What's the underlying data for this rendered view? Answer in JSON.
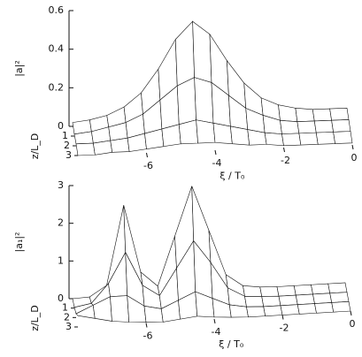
{
  "chart_data": [
    {
      "type": "surface",
      "zlabel": "|a|²",
      "ylabel": "z/L_D",
      "xlabel": "ξ / T₀",
      "x": [
        -8,
        -7.5,
        -7,
        -6.5,
        -6,
        -5.5,
        -5,
        -4.5,
        -4,
        -3.5,
        -3,
        -2.5,
        -2,
        -1.5,
        -1,
        -0.5,
        0
      ],
      "depths": [
        0,
        1,
        2,
        3
      ],
      "z": [
        [
          0.02,
          0.03,
          0.05,
          0.09,
          0.16,
          0.28,
          0.43,
          0.52,
          0.45,
          0.31,
          0.19,
          0.11,
          0.07,
          0.05,
          0.04,
          0.04,
          0.04
        ],
        [
          0.01,
          0.02,
          0.04,
          0.06,
          0.1,
          0.17,
          0.24,
          0.28,
          0.25,
          0.18,
          0.11,
          0.07,
          0.04,
          0.03,
          0.03,
          0.03,
          0.03
        ],
        [
          0.01,
          0.01,
          0.02,
          0.03,
          0.05,
          0.07,
          0.09,
          0.11,
          0.09,
          0.07,
          0.05,
          0.03,
          0.02,
          0.02,
          0.02,
          0.02,
          0.02
        ],
        [
          0,
          0,
          0.01,
          0.01,
          0.02,
          0.03,
          0.04,
          0.04,
          0.04,
          0.03,
          0.02,
          0.02,
          0.01,
          0.01,
          0.01,
          0.01,
          0.01
        ]
      ],
      "xlim": [
        -8,
        0
      ],
      "xticks": [
        -6,
        -4,
        -2,
        0
      ],
      "ylim": [
        0,
        3
      ],
      "yticks": [
        1,
        2,
        3
      ],
      "zlim": [
        0,
        0.6
      ],
      "zticks": [
        0,
        0.2,
        0.4,
        0.6
      ]
    },
    {
      "type": "surface",
      "zlabel": "|a₁|²",
      "ylabel": "z/L_D",
      "xlabel": "ξ / T₀",
      "x": [
        -8,
        -7.5,
        -7,
        -6.5,
        -6,
        -5.5,
        -5,
        -4.5,
        -4,
        -3.5,
        -3,
        -2.5,
        -2,
        -1.5,
        -1,
        -0.5,
        0
      ],
      "depths": [
        0,
        1,
        2,
        3
      ],
      "z": [
        [
          0,
          0.02,
          0.3,
          2.4,
          0.6,
          0.2,
          1.5,
          2.8,
          1.6,
          0.4,
          0.08,
          0.02,
          0,
          0,
          0,
          0,
          0
        ],
        [
          0.02,
          0.1,
          0.6,
          1.4,
          0.5,
          0.2,
          0.9,
          1.6,
          1.0,
          0.3,
          0.05,
          0.02,
          0,
          0,
          0,
          0,
          0
        ],
        [
          0.1,
          0.3,
          0.5,
          0.5,
          0.2,
          0.1,
          0.3,
          0.5,
          0.3,
          0.1,
          0.02,
          0,
          0,
          0,
          0,
          0,
          0
        ],
        [
          0.3,
          0.2,
          0.1,
          0.05,
          0.02,
          0,
          0.05,
          0.1,
          0.05,
          0.02,
          0,
          0,
          0,
          0,
          0,
          0,
          0
        ]
      ],
      "xlim": [
        -8,
        0
      ],
      "xticks": [
        -6,
        -4,
        -2,
        0
      ],
      "ylim": [
        0,
        3
      ],
      "yticks": [
        1,
        2,
        3
      ],
      "zlim": [
        0,
        3
      ],
      "zticks": [
        0,
        1,
        2,
        3
      ]
    }
  ]
}
